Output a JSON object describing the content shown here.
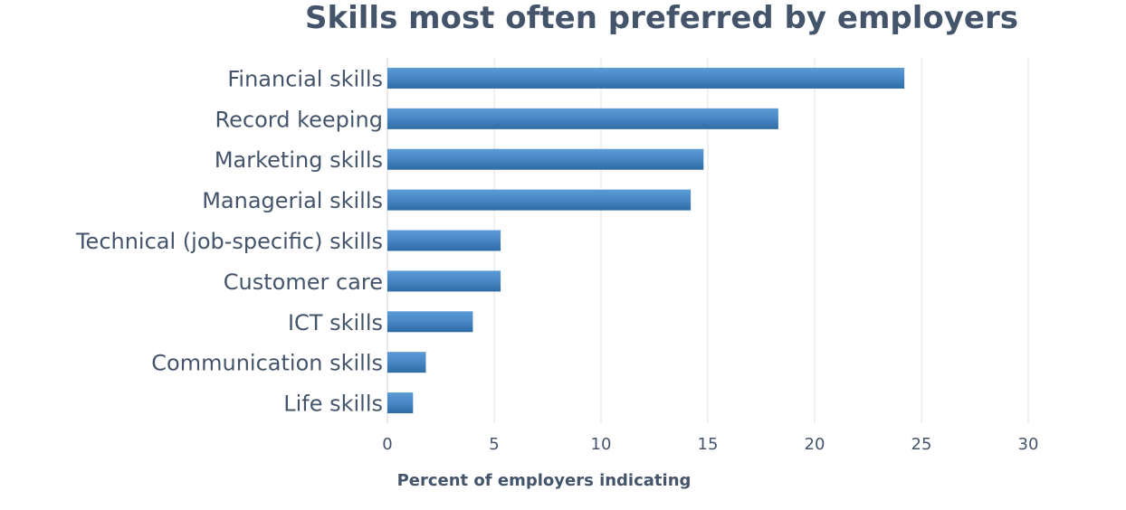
{
  "chart_data": {
    "type": "bar",
    "orientation": "horizontal",
    "title": "Skills most often preferred by employers",
    "xlabel": "Percent of employers indicating",
    "ylabel": "",
    "categories": [
      "Financial skills",
      "Record keeping",
      "Marketing skills",
      "Managerial skills",
      "Technical (job-specific) skills",
      "Customer care",
      "ICT skills",
      "Communication skills",
      "Life skills"
    ],
    "values": [
      24.2,
      18.3,
      14.8,
      14.2,
      5.3,
      5.3,
      4.0,
      1.8,
      1.2
    ],
    "xlim": [
      0,
      30
    ],
    "ticks": [
      "0",
      "5",
      "10",
      "15",
      "20",
      "25",
      "30"
    ],
    "grid": true,
    "legend": "none",
    "colors": {
      "bar_top": "#5b9bd5",
      "bar_mid": "#4a88c8",
      "bar_bottom": "#2e6ca4",
      "text": "#44546a"
    }
  }
}
